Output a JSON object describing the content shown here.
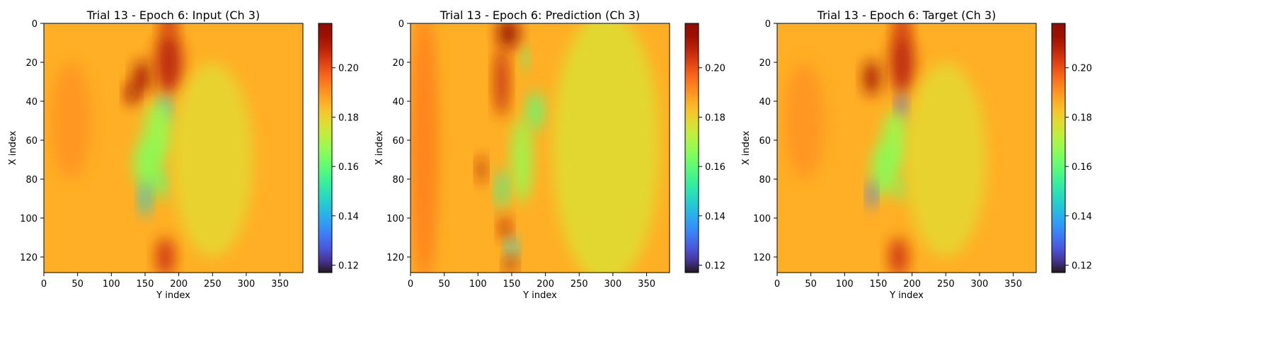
{
  "chart_data": [
    {
      "type": "heatmap",
      "title": "Trial 13 - Epoch 6: Input (Ch 3)",
      "xlabel": "Y index",
      "ylabel": "X index",
      "xlim": [
        0,
        384
      ],
      "ylim": [
        128,
        0
      ],
      "xticks": [
        0,
        50,
        100,
        150,
        200,
        250,
        300,
        350
      ],
      "yticks": [
        0,
        20,
        40,
        60,
        80,
        100,
        120
      ],
      "colormap": "turbo",
      "colorbar": {
        "vmin": 0.117,
        "vmax": 0.218,
        "ticks": [
          "0.12",
          "0.14",
          "0.16",
          "0.18",
          "0.20"
        ]
      },
      "background_value": 0.186,
      "features": [
        {
          "x": 185,
          "y": 20,
          "sx": 20,
          "sy": 16,
          "v": 0.208
        },
        {
          "x": 185,
          "y": 0,
          "sx": 12,
          "sy": 8,
          "v": 0.205
        },
        {
          "x": 145,
          "y": 28,
          "sx": 12,
          "sy": 9,
          "v": 0.212
        },
        {
          "x": 130,
          "y": 36,
          "sx": 9,
          "sy": 6,
          "v": 0.213
        },
        {
          "x": 180,
          "y": 44,
          "sx": 8,
          "sy": 7,
          "v": 0.14
        },
        {
          "x": 170,
          "y": 55,
          "sx": 22,
          "sy": 15,
          "v": 0.168
        },
        {
          "x": 155,
          "y": 72,
          "sx": 22,
          "sy": 14,
          "v": 0.166
        },
        {
          "x": 150,
          "y": 90,
          "sx": 8,
          "sy": 9,
          "v": 0.145
        },
        {
          "x": 175,
          "y": 83,
          "sx": 8,
          "sy": 8,
          "v": 0.16
        },
        {
          "x": 180,
          "y": 120,
          "sx": 14,
          "sy": 10,
          "v": 0.205
        },
        {
          "x": 250,
          "y": 70,
          "sx": 60,
          "sy": 50,
          "v": 0.179
        },
        {
          "x": 40,
          "y": 50,
          "sx": 30,
          "sy": 30,
          "v": 0.19
        }
      ]
    },
    {
      "type": "heatmap",
      "title": "Trial 13 - Epoch 6: Prediction (Ch 3)",
      "xlabel": "Y index",
      "ylabel": "X index",
      "xlim": [
        0,
        384
      ],
      "ylim": [
        128,
        0
      ],
      "xticks": [
        0,
        50,
        100,
        150,
        200,
        250,
        300,
        350
      ],
      "yticks": [
        0,
        20,
        40,
        60,
        80,
        100,
        120
      ],
      "colormap": "turbo",
      "colorbar": {
        "vmin": 0.117,
        "vmax": 0.218,
        "ticks": [
          "0.12",
          "0.14",
          "0.16",
          "0.18",
          "0.20"
        ]
      },
      "background_value": 0.186,
      "features": [
        {
          "x": 145,
          "y": 5,
          "sx": 16,
          "sy": 8,
          "v": 0.214
        },
        {
          "x": 135,
          "y": 30,
          "sx": 10,
          "sy": 18,
          "v": 0.207
        },
        {
          "x": 170,
          "y": 18,
          "sx": 5,
          "sy": 6,
          "v": 0.158
        },
        {
          "x": 185,
          "y": 45,
          "sx": 12,
          "sy": 10,
          "v": 0.16
        },
        {
          "x": 165,
          "y": 70,
          "sx": 15,
          "sy": 22,
          "v": 0.168
        },
        {
          "x": 105,
          "y": 75,
          "sx": 6,
          "sy": 7,
          "v": 0.21
        },
        {
          "x": 135,
          "y": 85,
          "sx": 8,
          "sy": 10,
          "v": 0.156
        },
        {
          "x": 140,
          "y": 105,
          "sx": 8,
          "sy": 6,
          "v": 0.208
        },
        {
          "x": 150,
          "y": 115,
          "sx": 8,
          "sy": 5,
          "v": 0.145
        },
        {
          "x": 148,
          "y": 124,
          "sx": 8,
          "sy": 4,
          "v": 0.212
        },
        {
          "x": 290,
          "y": 64,
          "sx": 80,
          "sy": 70,
          "v": 0.178
        },
        {
          "x": 20,
          "y": 64,
          "sx": 20,
          "sy": 70,
          "v": 0.193
        }
      ]
    },
    {
      "type": "heatmap",
      "title": "Trial 13 - Epoch 6: Target (Ch 3)",
      "xlabel": "Y index",
      "ylabel": "X index",
      "xlim": [
        0,
        384
      ],
      "ylim": [
        128,
        0
      ],
      "xticks": [
        0,
        50,
        100,
        150,
        200,
        250,
        300,
        350
      ],
      "yticks": [
        0,
        20,
        40,
        60,
        80,
        100,
        120
      ],
      "colormap": "turbo",
      "colorbar": {
        "vmin": 0.117,
        "vmax": 0.218,
        "ticks": [
          "0.12",
          "0.14",
          "0.16",
          "0.18",
          "0.20"
        ]
      },
      "background_value": 0.186,
      "features": [
        {
          "x": 185,
          "y": 20,
          "sx": 18,
          "sy": 16,
          "v": 0.208
        },
        {
          "x": 185,
          "y": 2,
          "sx": 12,
          "sy": 8,
          "v": 0.205
        },
        {
          "x": 140,
          "y": 28,
          "sx": 12,
          "sy": 9,
          "v": 0.212
        },
        {
          "x": 185,
          "y": 43,
          "sx": 7,
          "sy": 7,
          "v": 0.128
        },
        {
          "x": 175,
          "y": 60,
          "sx": 20,
          "sy": 15,
          "v": 0.168
        },
        {
          "x": 160,
          "y": 75,
          "sx": 20,
          "sy": 14,
          "v": 0.166
        },
        {
          "x": 140,
          "y": 88,
          "sx": 6,
          "sy": 7,
          "v": 0.132
        },
        {
          "x": 185,
          "y": 85,
          "sx": 7,
          "sy": 6,
          "v": 0.162
        },
        {
          "x": 180,
          "y": 120,
          "sx": 14,
          "sy": 10,
          "v": 0.205
        },
        {
          "x": 250,
          "y": 70,
          "sx": 60,
          "sy": 50,
          "v": 0.179
        },
        {
          "x": 40,
          "y": 50,
          "sx": 30,
          "sy": 30,
          "v": 0.19
        }
      ]
    }
  ]
}
